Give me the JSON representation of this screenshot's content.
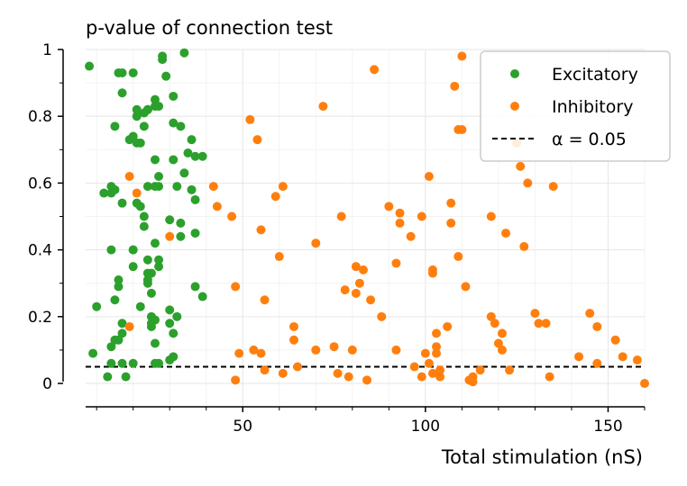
{
  "chart_data": {
    "type": "scatter",
    "title": "p-value of connection test",
    "xlabel": "Total stimulation (nS)",
    "ylabel": "",
    "xlim": [
      7,
      160
    ],
    "ylim": [
      -0.07,
      1.0
    ],
    "xticks": [
      50,
      100,
      150
    ],
    "yticks": [
      0,
      0.2,
      0.4,
      0.6,
      0.8,
      1
    ],
    "ytick_labels": [
      "0",
      "0.2",
      "0.4",
      "0.6",
      "0.8",
      "1"
    ],
    "xtick_labels": [
      "50",
      "100",
      "150"
    ],
    "grid": true,
    "legend_position": "top-right",
    "alpha_line": {
      "label": "α = 0.05",
      "value": 0.05,
      "color": "#000000"
    },
    "series": [
      {
        "name": "Excitatory",
        "color": "#2ca02c",
        "points": [
          [
            8,
            0.95
          ],
          [
            9,
            0.09
          ],
          [
            10,
            0.23
          ],
          [
            12,
            0.57
          ],
          [
            13,
            0.02
          ],
          [
            14,
            0.57
          ],
          [
            14,
            0.59
          ],
          [
            14,
            0.4
          ],
          [
            14,
            0.11
          ],
          [
            14,
            0.06
          ],
          [
            15,
            0.58
          ],
          [
            15,
            0.25
          ],
          [
            15,
            0.13
          ],
          [
            15,
            0.77
          ],
          [
            16,
            0.93
          ],
          [
            16,
            0.29
          ],
          [
            16,
            0.13
          ],
          [
            16,
            0.31
          ],
          [
            17,
            0.93
          ],
          [
            17,
            0.87
          ],
          [
            17,
            0.54
          ],
          [
            17,
            0.18
          ],
          [
            17,
            0.15
          ],
          [
            17,
            0.06
          ],
          [
            18,
            0.02
          ],
          [
            19,
            0.73
          ],
          [
            20,
            0.93
          ],
          [
            20,
            0.74
          ],
          [
            20,
            0.4
          ],
          [
            20,
            0.4
          ],
          [
            20,
            0.35
          ],
          [
            20,
            0.06
          ],
          [
            21,
            0.8
          ],
          [
            21,
            0.82
          ],
          [
            21,
            0.72
          ],
          [
            21,
            0.54
          ],
          [
            22,
            0.53
          ],
          [
            22,
            0.23
          ],
          [
            22,
            0.72
          ],
          [
            23,
            0.81
          ],
          [
            23,
            0.77
          ],
          [
            23,
            0.5
          ],
          [
            23,
            0.47
          ],
          [
            24,
            0.82
          ],
          [
            24,
            0.59
          ],
          [
            24,
            0.37
          ],
          [
            24,
            0.33
          ],
          [
            24,
            0.31
          ],
          [
            24,
            0.3
          ],
          [
            24,
            0.82
          ],
          [
            25,
            0.2
          ],
          [
            25,
            0.17
          ],
          [
            25,
            0.33
          ],
          [
            25,
            0.27
          ],
          [
            25,
            0.18
          ],
          [
            26,
            0.67
          ],
          [
            26,
            0.59
          ],
          [
            26,
            0.42
          ],
          [
            26,
            0.19
          ],
          [
            26,
            0.06
          ],
          [
            26,
            0.12
          ],
          [
            26,
            0.85
          ],
          [
            26,
            0.83
          ],
          [
            27,
            0.59
          ],
          [
            27,
            0.37
          ],
          [
            27,
            0.35
          ],
          [
            27,
            0.06
          ],
          [
            27,
            0.62
          ],
          [
            27,
            0.83
          ],
          [
            28,
            0.97
          ],
          [
            28,
            0.98
          ],
          [
            29,
            0.92
          ],
          [
            30,
            0.49
          ],
          [
            30,
            0.22
          ],
          [
            30,
            0.07
          ],
          [
            30,
            0.18
          ],
          [
            31,
            0.86
          ],
          [
            31,
            0.78
          ],
          [
            31,
            0.67
          ],
          [
            31,
            0.15
          ],
          [
            31,
            0.08
          ],
          [
            32,
            0.59
          ],
          [
            32,
            0.2
          ],
          [
            33,
            0.77
          ],
          [
            33,
            0.48
          ],
          [
            33,
            0.44
          ],
          [
            34,
            0.99
          ],
          [
            34,
            0.63
          ],
          [
            35,
            0.69
          ],
          [
            36,
            0.73
          ],
          [
            36,
            0.58
          ],
          [
            37,
            0.68
          ],
          [
            37,
            0.55
          ],
          [
            37,
            0.45
          ],
          [
            37,
            0.29
          ],
          [
            39,
            0.68
          ],
          [
            39,
            0.26
          ]
        ]
      },
      {
        "name": "Inhibitory",
        "color": "#ff7f0e",
        "points": [
          [
            19,
            0.62
          ],
          [
            19,
            0.17
          ],
          [
            21,
            0.57
          ],
          [
            30,
            0.44
          ],
          [
            42,
            0.59
          ],
          [
            43,
            0.53
          ],
          [
            47,
            0.5
          ],
          [
            48,
            0.29
          ],
          [
            48,
            0.01
          ],
          [
            49,
            0.09
          ],
          [
            52,
            0.79
          ],
          [
            53,
            0.1
          ],
          [
            54,
            0.73
          ],
          [
            55,
            0.46
          ],
          [
            55,
            0.09
          ],
          [
            56,
            0.25
          ],
          [
            56,
            0.04
          ],
          [
            59,
            0.56
          ],
          [
            60,
            0.38
          ],
          [
            61,
            0.59
          ],
          [
            61,
            0.03
          ],
          [
            64,
            0.17
          ],
          [
            64,
            0.13
          ],
          [
            65,
            0.05
          ],
          [
            70,
            0.42
          ],
          [
            70,
            0.1
          ],
          [
            72,
            0.83
          ],
          [
            75,
            0.11
          ],
          [
            76,
            0.03
          ],
          [
            77,
            0.5
          ],
          [
            78,
            0.28
          ],
          [
            79,
            0.02
          ],
          [
            80,
            0.1
          ],
          [
            81,
            0.27
          ],
          [
            81,
            0.35
          ],
          [
            82,
            0.3
          ],
          [
            83,
            0.34
          ],
          [
            84,
            0.01
          ],
          [
            85,
            0.25
          ],
          [
            86,
            0.94
          ],
          [
            88,
            0.2
          ],
          [
            90,
            0.53
          ],
          [
            92,
            0.36
          ],
          [
            92,
            0.1
          ],
          [
            93,
            0.51
          ],
          [
            93,
            0.48
          ],
          [
            96,
            0.44
          ],
          [
            97,
            0.05
          ],
          [
            99,
            0.5
          ],
          [
            99,
            0.02
          ],
          [
            100,
            0.09
          ],
          [
            101,
            0.62
          ],
          [
            101,
            0.06
          ],
          [
            102,
            0.34
          ],
          [
            102,
            0.33
          ],
          [
            102,
            0.03
          ],
          [
            103,
            0.15
          ],
          [
            103,
            0.11
          ],
          [
            103,
            0.09
          ],
          [
            104,
            0.04
          ],
          [
            104,
            0.02
          ],
          [
            106,
            0.17
          ],
          [
            107,
            0.54
          ],
          [
            107,
            0.48
          ],
          [
            108,
            0.89
          ],
          [
            109,
            0.76
          ],
          [
            109,
            0.38
          ],
          [
            110,
            0.98
          ],
          [
            110,
            0.76
          ],
          [
            111,
            0.29
          ],
          [
            112,
            0.01
          ],
          [
            113,
            0.02
          ],
          [
            113,
            0.005
          ],
          [
            115,
            0.04
          ],
          [
            118,
            0.5
          ],
          [
            118,
            0.2
          ],
          [
            119,
            0.18
          ],
          [
            120,
            0.12
          ],
          [
            121,
            0.1
          ],
          [
            121,
            0.15
          ],
          [
            122,
            0.45
          ],
          [
            123,
            0.04
          ],
          [
            125,
            0.72
          ],
          [
            126,
            0.65
          ],
          [
            127,
            0.41
          ],
          [
            128,
            0.6
          ],
          [
            130,
            0.21
          ],
          [
            131,
            0.18
          ],
          [
            133,
            0.18
          ],
          [
            134,
            0.02
          ],
          [
            135,
            0.59
          ],
          [
            142,
            0.08
          ],
          [
            145,
            0.21
          ],
          [
            147,
            0.17
          ],
          [
            147,
            0.06
          ],
          [
            152,
            0.13
          ],
          [
            154,
            0.08
          ],
          [
            158,
            0.07
          ],
          [
            160,
            0.0
          ]
        ]
      }
    ]
  }
}
